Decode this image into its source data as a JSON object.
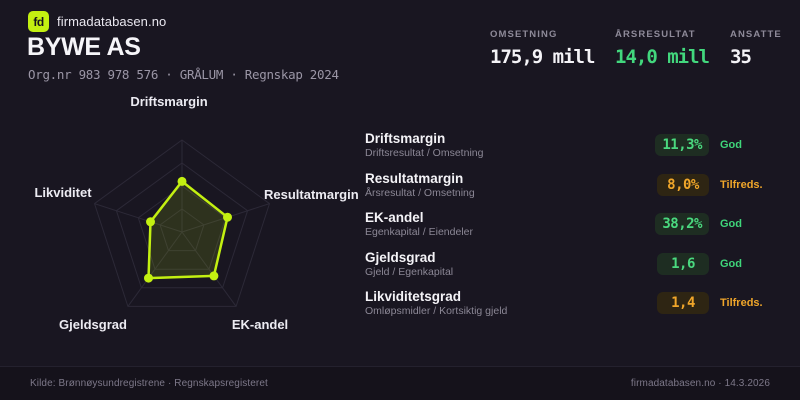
{
  "brand": {
    "logo": "fd",
    "site_name": "firmadatabasen.no"
  },
  "company": {
    "name": "BYWE AS",
    "meta": "Org.nr 983 978 576  ·  GRÅLUM  ·  Regnskap 2024"
  },
  "stats": [
    {
      "label": "OMSETNING",
      "value": "175,9 mill",
      "color": "#f4f3f7"
    },
    {
      "label": "ÅRSRESULTAT",
      "value": "14,0 mill",
      "color": "#42d77d"
    },
    {
      "label": "ANSATTE",
      "value": "35",
      "color": "#f4f3f7"
    }
  ],
  "chart_data": {
    "type": "radar",
    "categories": [
      "Driftsmargin",
      "Resultatmargin",
      "EK-andel",
      "Gjeldsgrad",
      "Likviditet"
    ],
    "values": [
      0.55,
      0.52,
      0.59,
      0.62,
      0.36
    ],
    "value_scale": "fraction of outer ring (0-1), axes clockwise from top",
    "rings": 4,
    "grid": true,
    "legend": false,
    "stroke_color": "#c3f011",
    "fill_color": "rgba(195,240,17,0.13)",
    "grid_color": "#2c2937",
    "point_radius": 4.5
  },
  "metrics": [
    {
      "name": "Driftsmargin",
      "formula": "Driftsresultat / Omsetning",
      "value": "11,3%",
      "rating": "God",
      "status": "good"
    },
    {
      "name": "Resultatmargin",
      "formula": "Årsresultat / Omsetning",
      "value": "8,0%",
      "rating": "Tilfreds.",
      "status": "ok"
    },
    {
      "name": "EK-andel",
      "formula": "Egenkapital / Eiendeler",
      "value": "38,2%",
      "rating": "God",
      "status": "good"
    },
    {
      "name": "Gjeldsgrad",
      "formula": "Gjeld / Egenkapital",
      "value": "1,6",
      "rating": "God",
      "status": "good"
    },
    {
      "name": "Likviditetsgrad",
      "formula": "Omløpsmidler / Kortsiktig gjeld",
      "value": "1,4",
      "rating": "Tilfreds.",
      "status": "ok"
    }
  ],
  "footer": {
    "source": "Kilde: Brønnøysundregistrene · Regnskapsregisteret",
    "attribution": "firmadatabasen.no · 14.3.2026"
  }
}
